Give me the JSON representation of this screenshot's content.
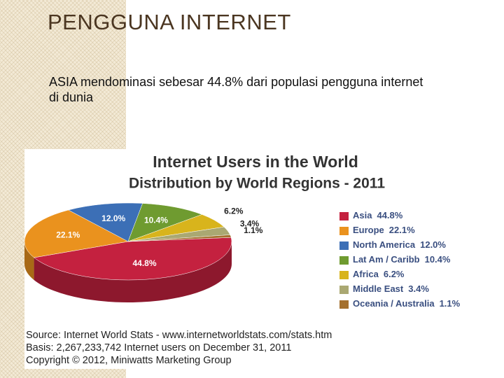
{
  "title": "PENGGUNA INTERNET",
  "body": "ASIA mendominasi sebesar 44.8% dari populasi pengguna internet di dunia",
  "chart_data": {
    "type": "pie",
    "title": "Internet Users in the World",
    "subtitle": "Distribution by World Regions - 2011",
    "categories": [
      "Asia",
      "Europe",
      "North America",
      "Lat Am / Caribb",
      "Africa",
      "Middle East",
      "Oceania / Australia"
    ],
    "values": [
      44.8,
      22.1,
      12.0,
      10.4,
      6.2,
      3.4,
      1.1
    ],
    "value_labels": [
      "44.8%",
      "22.1%",
      "12.0%",
      "10.4%",
      "6.2%",
      "3.4%",
      "1.1%"
    ],
    "colors": [
      "#c4213f",
      "#ea921e",
      "#3c6fb6",
      "#6f9b30",
      "#d8b41c",
      "#aaa872",
      "#a4702e"
    ],
    "notes": [
      "Source: Internet World Stats - www.internetworldstats.com/stats.htm",
      "Basis: 2,267,233,742 Internet users on December 31, 2011",
      "Copyright © 2012, Miniwatts Marketing Group"
    ]
  }
}
